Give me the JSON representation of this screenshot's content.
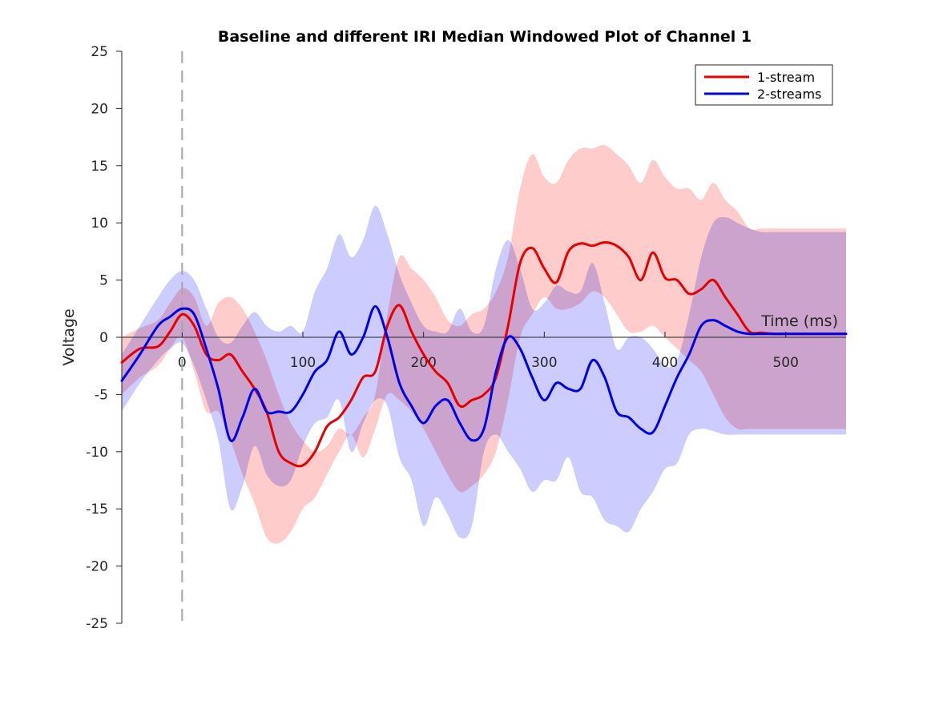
{
  "chart_data": {
    "type": "line",
    "title": "Baseline and different IRI Median Windowed Plot of Channel 1",
    "xlabel": "Time (ms)",
    "ylabel": "Voltage",
    "xlim": [
      -50,
      550
    ],
    "ylim": [
      -25,
      25
    ],
    "xticks": [
      0,
      100,
      200,
      300,
      400,
      500
    ],
    "yticks": [
      25,
      20,
      15,
      10,
      5,
      0,
      -5,
      -10,
      -15,
      -20,
      -25
    ],
    "stimulus_onset": 0,
    "legend_position": "top-right",
    "series": [
      {
        "name": "1-stream",
        "color": "#e60000",
        "band_color": "#ffcccc",
        "x": [
          -50,
          -35,
          -20,
          -10,
          0,
          10,
          20,
          30,
          40,
          50,
          60,
          70,
          80,
          90,
          100,
          110,
          120,
          130,
          140,
          150,
          160,
          170,
          180,
          190,
          200,
          210,
          220,
          230,
          240,
          250,
          260,
          270,
          280,
          290,
          300,
          310,
          320,
          330,
          340,
          350,
          360,
          370,
          380,
          390,
          400,
          410,
          420,
          430,
          440,
          450,
          460,
          470,
          480,
          490,
          500,
          510,
          520,
          530,
          540,
          550
        ],
        "y": [
          -2.2,
          -1.0,
          -0.8,
          0.5,
          2.0,
          1.0,
          -1.5,
          -2.0,
          -1.5,
          -3.0,
          -4.5,
          -6.5,
          -10.0,
          -11.0,
          -11.2,
          -10.0,
          -7.8,
          -7.0,
          -5.5,
          -3.5,
          -3.0,
          1.0,
          2.8,
          0.5,
          -1.5,
          -3.0,
          -4.0,
          -6.0,
          -5.5,
          -5.0,
          -3.5,
          1.0,
          6.5,
          7.8,
          6.0,
          4.8,
          7.5,
          8.2,
          8.0,
          8.3,
          8.0,
          7.0,
          5.0,
          7.4,
          5.2,
          5.0,
          3.8,
          4.2,
          5.0,
          3.5,
          2.0,
          0.5,
          0.4,
          0.3,
          0.3,
          0.3,
          0.3,
          0.3,
          0.3,
          0.3
        ],
        "upper": [
          0.0,
          0.8,
          1.5,
          3.0,
          4.3,
          3.5,
          1.0,
          3.0,
          3.5,
          2.5,
          0.5,
          -2.0,
          -5.0,
          -7.5,
          -9.0,
          -10.0,
          -9.5,
          -8.0,
          -8.5,
          -7.0,
          -5.0,
          2.0,
          7.0,
          6.0,
          5.0,
          3.5,
          1.5,
          1.0,
          2.0,
          2.5,
          4.0,
          7.0,
          13.0,
          16.0,
          14.0,
          13.5,
          15.5,
          16.5,
          16.5,
          16.8,
          16.0,
          15.0,
          13.5,
          15.5,
          14.0,
          13.0,
          13.0,
          12.0,
          13.5,
          12.0,
          11.0,
          9.5,
          9.5,
          9.5,
          9.5,
          9.5,
          9.5,
          9.5,
          9.5,
          9.5
        ],
        "lower": [
          -5.0,
          -3.5,
          -2.5,
          -1.0,
          0.0,
          -3.0,
          -6.5,
          -6.5,
          -9.0,
          -12.0,
          -14.5,
          -17.5,
          -18.0,
          -17.0,
          -15.0,
          -14.0,
          -12.0,
          -10.0,
          -8.5,
          -10.5,
          -8.0,
          -5.0,
          -5.5,
          -6.5,
          -8.0,
          -10.0,
          -12.0,
          -13.5,
          -13.0,
          -12.0,
          -10.0,
          -5.5,
          0.0,
          2.0,
          3.5,
          2.5,
          2.5,
          3.0,
          4.0,
          3.5,
          2.0,
          0.5,
          0.5,
          1.0,
          0.0,
          -1.0,
          -2.0,
          -3.0,
          -5.0,
          -7.0,
          -8.0,
          -8.0,
          -8.0,
          -8.0,
          -8.0,
          -8.0,
          -8.0,
          -8.0,
          -8.0,
          -8.0
        ]
      },
      {
        "name": "2-streams",
        "color": "#0000e6",
        "band_color": "#ccccff",
        "x": [
          -50,
          -35,
          -20,
          -10,
          0,
          10,
          20,
          30,
          40,
          50,
          60,
          70,
          80,
          90,
          100,
          110,
          120,
          130,
          140,
          150,
          160,
          170,
          180,
          190,
          200,
          210,
          220,
          230,
          240,
          250,
          260,
          270,
          280,
          290,
          300,
          310,
          320,
          330,
          340,
          350,
          360,
          370,
          380,
          390,
          400,
          410,
          420,
          430,
          440,
          450,
          460,
          470,
          480,
          490,
          500,
          510,
          520,
          530,
          540,
          550
        ],
        "y": [
          -3.8,
          -1.5,
          1.0,
          1.8,
          2.5,
          2.0,
          -1.0,
          -4.5,
          -9.0,
          -7.0,
          -4.5,
          -6.5,
          -6.5,
          -6.5,
          -5.0,
          -3.0,
          -2.0,
          0.5,
          -1.5,
          0.0,
          2.7,
          0.0,
          -4.0,
          -6.0,
          -7.5,
          -6.0,
          -5.5,
          -7.5,
          -9.0,
          -8.0,
          -3.0,
          0.0,
          -1.0,
          -3.5,
          -5.5,
          -4.0,
          -4.5,
          -4.5,
          -2.0,
          -3.5,
          -6.5,
          -7.0,
          -8.0,
          -8.3,
          -6.0,
          -3.5,
          -1.5,
          1.0,
          1.5,
          1.0,
          0.5,
          0.3,
          0.3,
          0.3,
          0.3,
          0.3,
          0.3,
          0.3,
          0.3,
          0.3
        ],
        "upper": [
          -1.5,
          1.0,
          3.5,
          5.0,
          5.8,
          5.0,
          2.5,
          0.0,
          -0.5,
          1.0,
          2.2,
          1.0,
          0.5,
          1.0,
          0.5,
          4.0,
          6.0,
          9.0,
          7.0,
          8.5,
          11.5,
          9.0,
          5.5,
          3.0,
          1.0,
          0.5,
          0.5,
          2.5,
          0.5,
          1.0,
          6.0,
          8.5,
          6.0,
          2.5,
          3.0,
          4.5,
          4.0,
          4.0,
          6.5,
          3.0,
          -1.0,
          0.0,
          0.0,
          -1.0,
          -2.5,
          -2.0,
          2.0,
          7.0,
          10.0,
          10.5,
          10.0,
          9.5,
          9.2,
          9.2,
          9.2,
          9.2,
          9.2,
          9.2,
          9.2,
          9.2
        ],
        "lower": [
          -6.5,
          -4.0,
          -2.0,
          -1.0,
          -0.5,
          -2.5,
          -5.5,
          -9.0,
          -15.0,
          -13.0,
          -9.5,
          -12.0,
          -13.0,
          -12.5,
          -9.5,
          -7.5,
          -7.0,
          -5.5,
          -10.0,
          -7.5,
          -5.5,
          -6.0,
          -10.5,
          -12.5,
          -16.5,
          -14.0,
          -15.5,
          -17.5,
          -16.5,
          -10.0,
          -8.5,
          -10.0,
          -11.5,
          -13.5,
          -12.5,
          -12.5,
          -10.5,
          -13.5,
          -14.0,
          -16.0,
          -16.5,
          -17.0,
          -15.0,
          -13.5,
          -11.5,
          -11.0,
          -8.5,
          -8.0,
          -8.2,
          -8.5,
          -8.5,
          -8.5,
          -8.5,
          -8.5,
          -8.5,
          -8.5,
          -8.5,
          -8.5,
          -8.5,
          -8.5
        ]
      }
    ]
  }
}
